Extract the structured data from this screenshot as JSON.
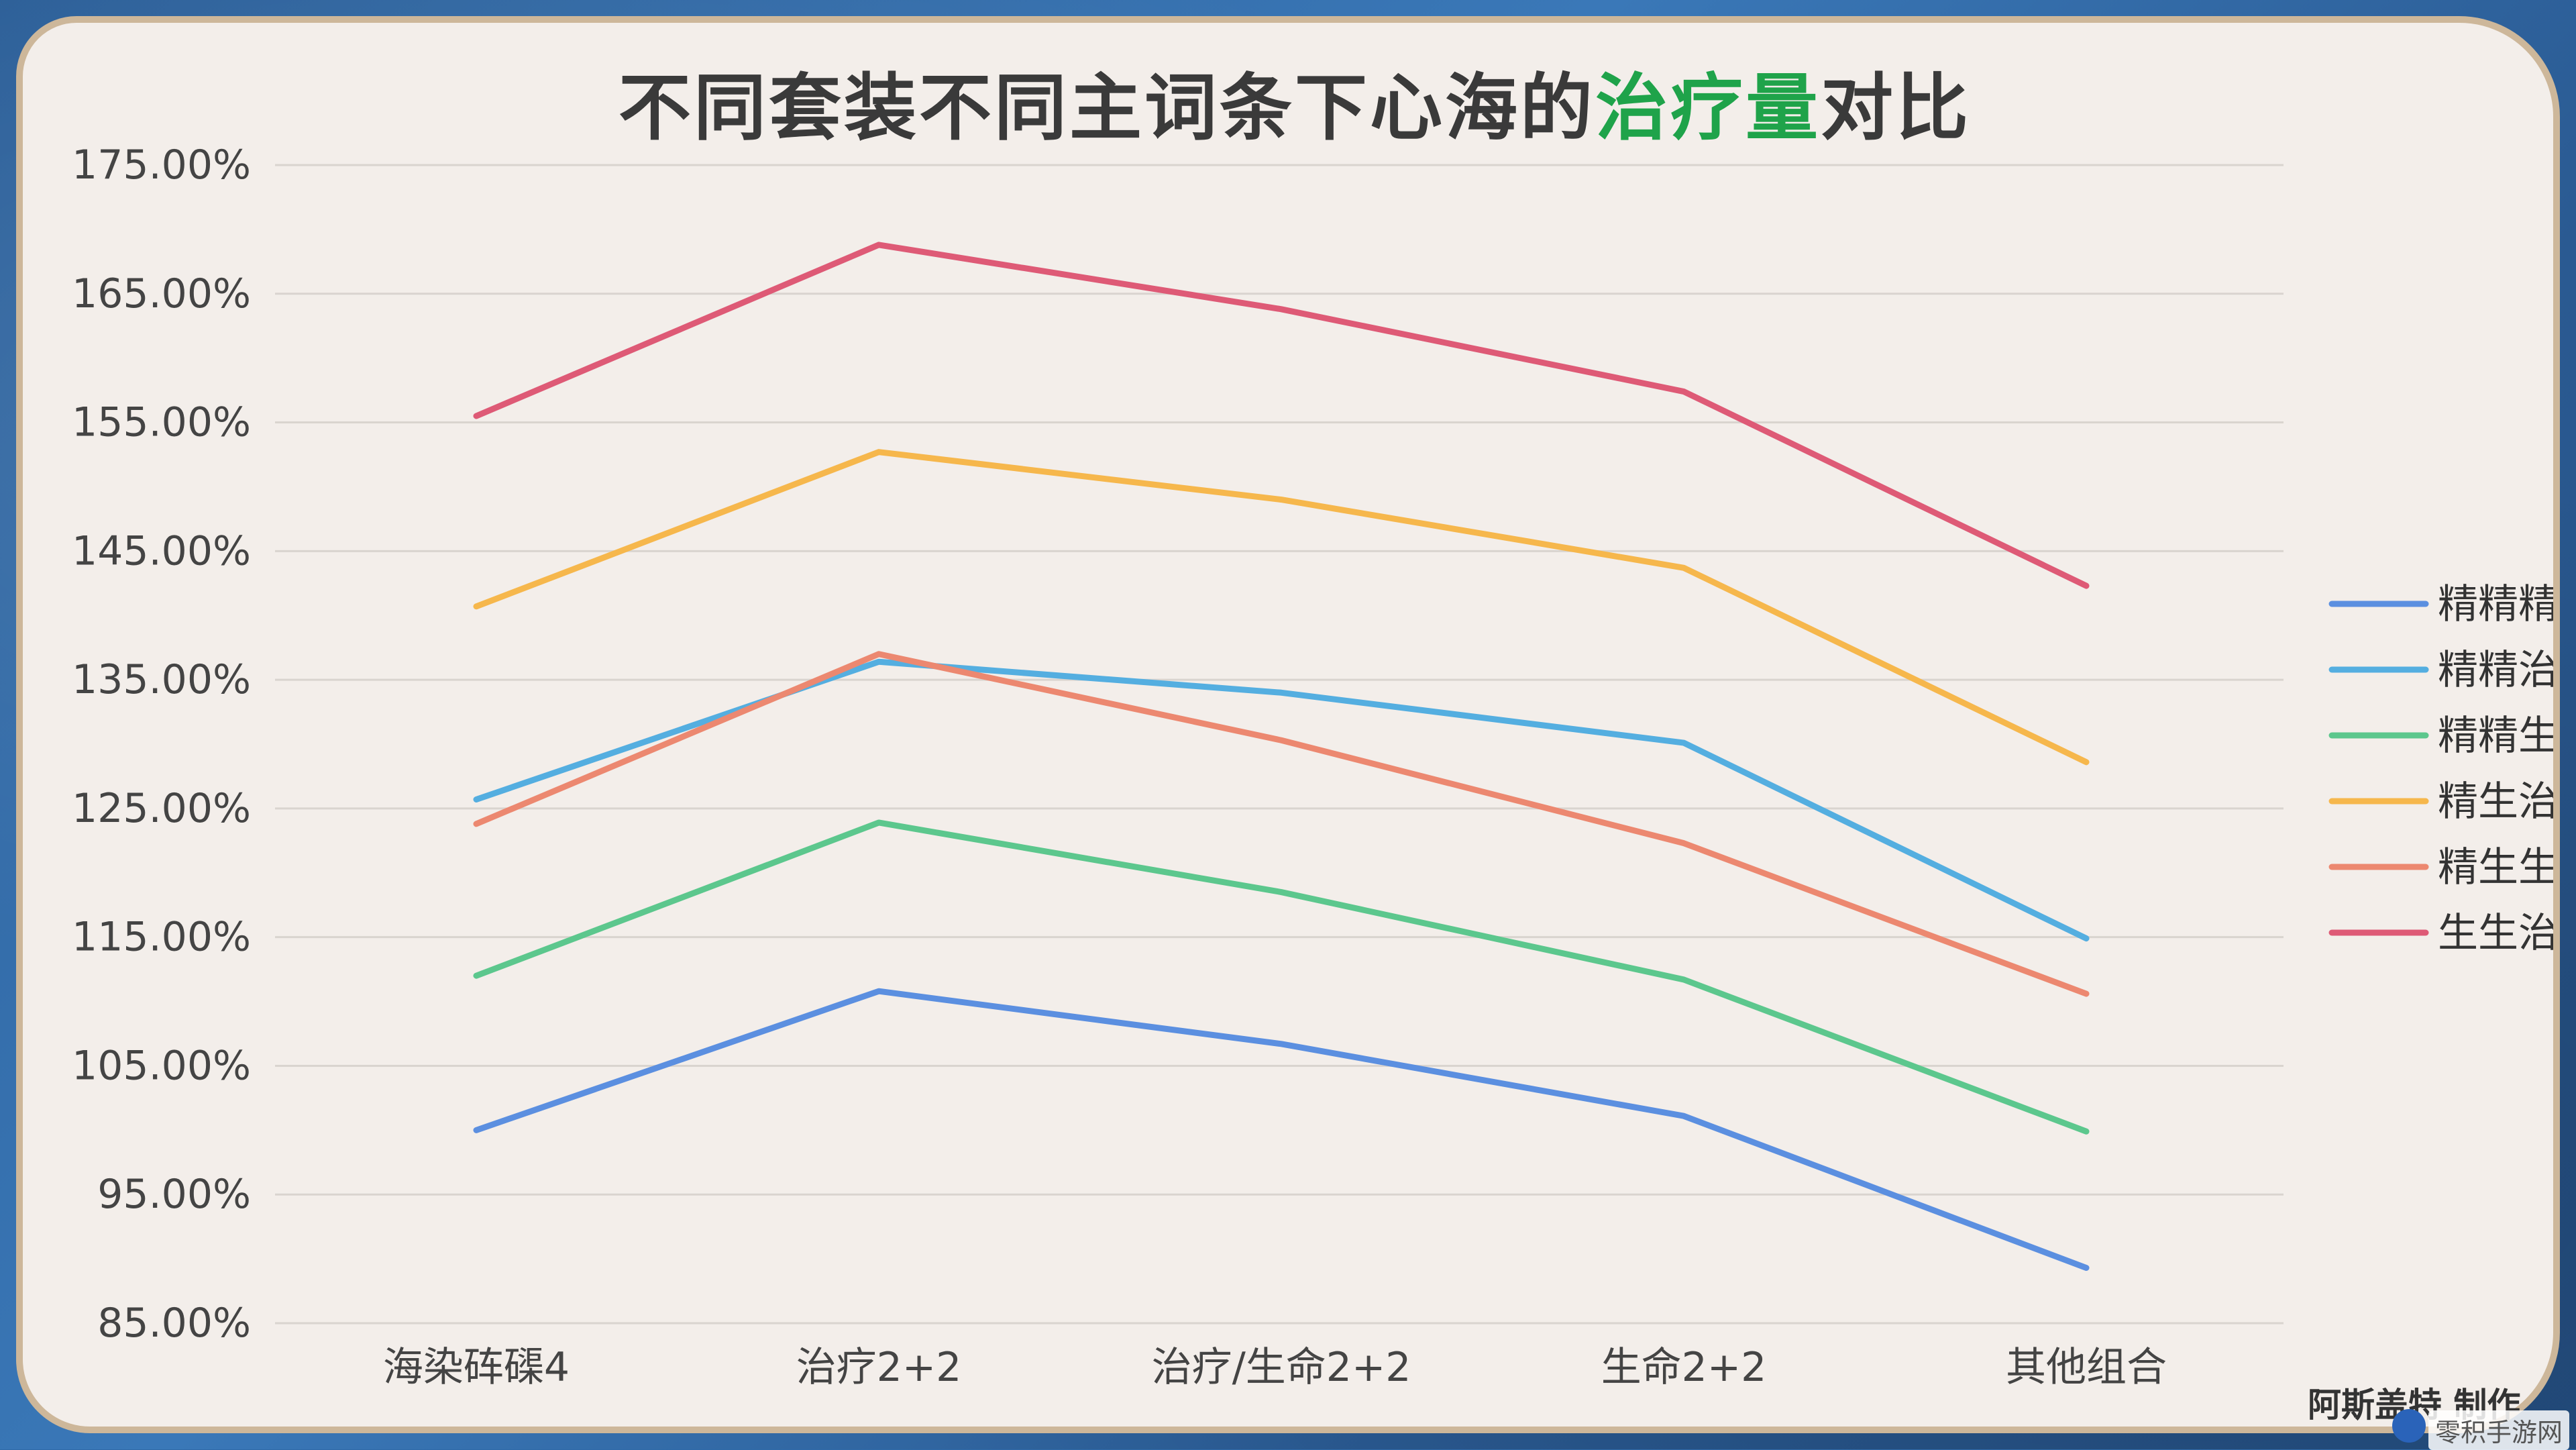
{
  "title": {
    "prefix": "不同套装不同主词条下心海的",
    "highlight": "治疗量",
    "suffix": "对比",
    "highlight_color": "#1fa34a"
  },
  "credit": "阿斯盖特 制作",
  "watermark": "零积手游网",
  "chart_data": {
    "type": "line",
    "title": "不同套装不同主词条下心海的治疗量对比",
    "categories": [
      "海染砗磲4",
      "治疗2+2",
      "治疗/生命2+2",
      "生命2+2",
      "其他组合"
    ],
    "ylim": [
      85,
      175
    ],
    "yticks": [
      85,
      95,
      105,
      115,
      125,
      135,
      145,
      155,
      165,
      175
    ],
    "ytick_labels": [
      "85.00%",
      "95.00%",
      "105.00%",
      "115.00%",
      "125.00%",
      "135.00%",
      "145.00%",
      "155.00%",
      "165.00%",
      "175.00%"
    ],
    "y_unit": "%",
    "grid": true,
    "legend_position": "right",
    "series": [
      {
        "name": "精精精",
        "color": "#5b8fe0",
        "values": [
          100.0,
          110.8,
          106.7,
          101.1,
          89.3
        ]
      },
      {
        "name": "精精治",
        "color": "#54aee0",
        "values": [
          125.7,
          136.4,
          134.0,
          130.1,
          114.9
        ]
      },
      {
        "name": "精精生",
        "color": "#5cc78d",
        "values": [
          112.0,
          123.9,
          118.5,
          111.7,
          99.9
        ]
      },
      {
        "name": "精生治",
        "color": "#f6b74c",
        "values": [
          140.7,
          152.7,
          149.0,
          143.7,
          128.6
        ]
      },
      {
        "name": "精生生",
        "color": "#ec8870",
        "values": [
          123.8,
          137.0,
          130.3,
          122.3,
          110.6
        ]
      },
      {
        "name": "生生治",
        "color": "#de5a76",
        "values": [
          155.5,
          168.8,
          163.8,
          157.4,
          142.3
        ]
      }
    ]
  }
}
